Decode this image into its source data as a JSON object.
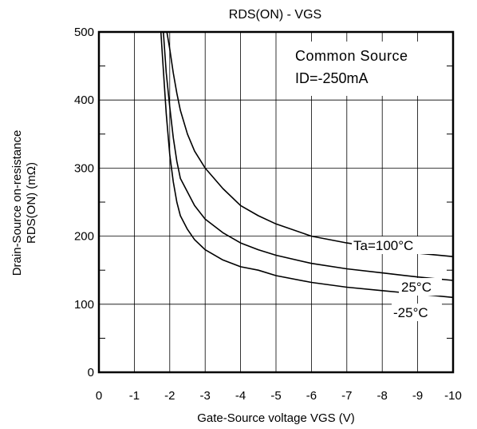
{
  "chart_data": {
    "type": "line",
    "title": "RDS(ON) - VGS",
    "xlabel": "Gate-Source voltage  VGS (V)",
    "ylabel_lines": [
      "Drain-Source on-resistance",
      "RDS(ON) (mΩ)"
    ],
    "xlim": [
      0,
      -10
    ],
    "ylim": [
      0,
      500
    ],
    "x_ticks": [
      0,
      -1,
      -2,
      -3,
      -4,
      -5,
      -6,
      -7,
      -8,
      -9,
      -10
    ],
    "x_tick_labels": [
      "0",
      "-1",
      "-2",
      "-3",
      "-4",
      "-5",
      "-6",
      "-7",
      "-8",
      "-9",
      "-10"
    ],
    "y_ticks": [
      0,
      100,
      200,
      300,
      400,
      500
    ],
    "y_tick_labels": [
      "0",
      "100",
      "200",
      "300",
      "400",
      "500"
    ],
    "y_minor_ticks": [
      50,
      150,
      250,
      350,
      450
    ],
    "grid": true,
    "legend_box": [
      "Common Source",
      "ID=-250mA"
    ],
    "series": [
      {
        "name": "Ta=100°C",
        "x": [
          -1.92,
          -2.0,
          -2.1,
          -2.2,
          -2.3,
          -2.5,
          -2.7,
          -3.0,
          -3.5,
          -4.0,
          -4.5,
          -5.0,
          -6.0,
          -7.0,
          -8.0,
          -9.0,
          -10.0
        ],
        "y": [
          500,
          475,
          440,
          410,
          385,
          350,
          325,
          300,
          270,
          245,
          230,
          218,
          200,
          190,
          182,
          175,
          170
        ]
      },
      {
        "name": "25°C",
        "x": [
          -1.82,
          -1.9,
          -2.0,
          -2.1,
          -2.2,
          -2.3,
          -2.5,
          -2.7,
          -3.0,
          -3.5,
          -4.0,
          -4.5,
          -5.0,
          -6.0,
          -7.0,
          -8.0,
          -9.0,
          -10.0
        ],
        "y": [
          500,
          440,
          390,
          345,
          310,
          285,
          265,
          245,
          225,
          205,
          190,
          180,
          172,
          160,
          152,
          146,
          140,
          135
        ]
      },
      {
        "name": "-25°C",
        "x": [
          -1.75,
          -1.8,
          -1.9,
          -2.0,
          -2.1,
          -2.2,
          -2.3,
          -2.5,
          -2.7,
          -3.0,
          -3.5,
          -4.0,
          -4.5,
          -5.0,
          -6.0,
          -7.0,
          -8.0,
          -9.0,
          -10.0
        ],
        "y": [
          500,
          460,
          380,
          320,
          280,
          250,
          230,
          210,
          195,
          180,
          165,
          155,
          150,
          142,
          132,
          125,
          120,
          115,
          110
        ]
      }
    ],
    "curve_labels": [
      "Ta=100°C",
      "25°C",
      "-25°C"
    ]
  }
}
